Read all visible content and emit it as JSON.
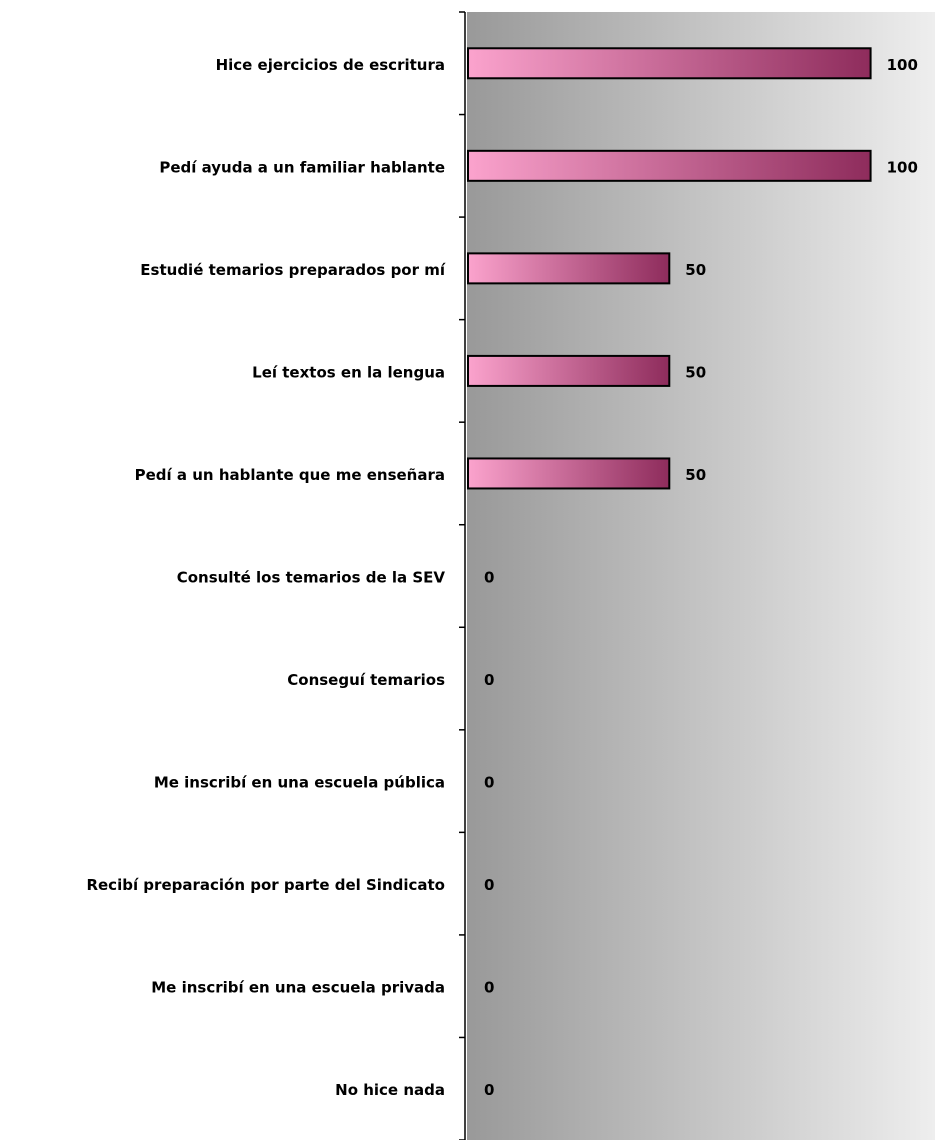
{
  "chart_data": {
    "type": "bar",
    "orientation": "horizontal",
    "categories": [
      "Hice ejercicios de escritura",
      "Pedí ayuda a un familiar hablante",
      "Estudié temarios preparados por mí",
      "Leí textos en la lengua",
      "Pedí a un hablante que me enseñara",
      "Consulté los temarios de la SEV",
      "Conseguí temarios",
      "Me inscribí en una escuela pública",
      "Recibí preparación por parte del Sindicato",
      "Me inscribí en una escuela privada",
      "No hice nada"
    ],
    "values": [
      100,
      100,
      50,
      50,
      50,
      0,
      0,
      0,
      0,
      0,
      0
    ],
    "color": [
      "#fba3cd",
      "#8e2c5c"
    ],
    "xlim": [
      0,
      116
    ]
  }
}
